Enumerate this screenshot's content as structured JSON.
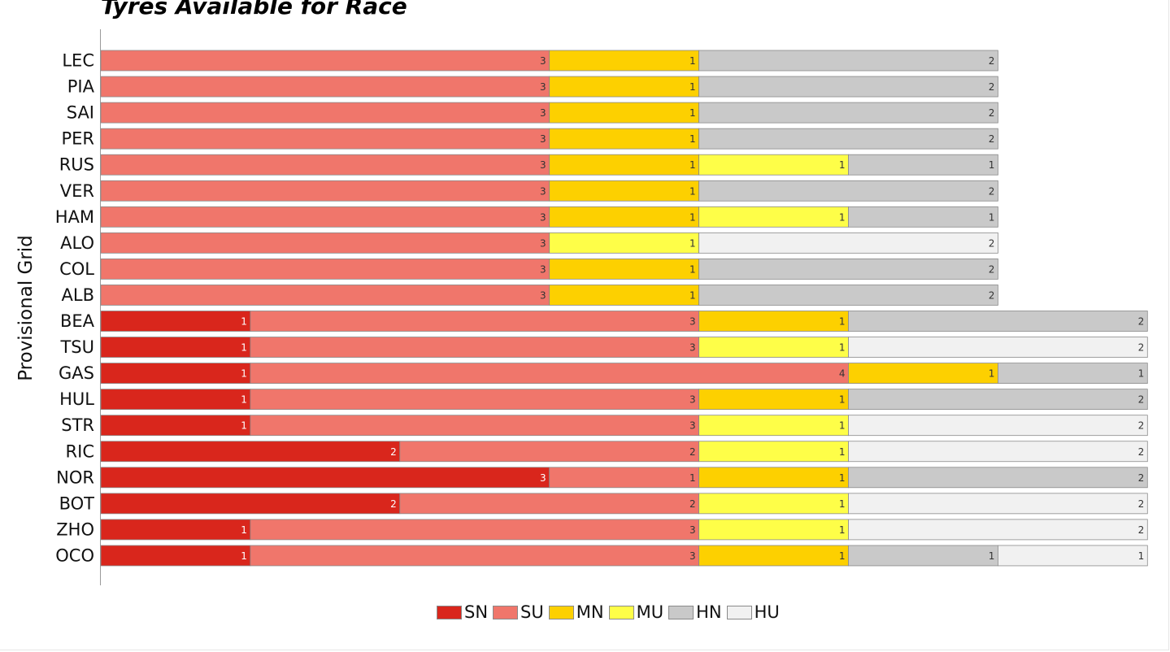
{
  "chart_data": {
    "type": "bar",
    "orientation": "horizontal",
    "stacked": true,
    "title": "Tyres Available for Race",
    "xlabel": "",
    "ylabel": "Provisional Grid",
    "xlim": [
      0,
      7
    ],
    "grid": false,
    "legend_position": "bottom",
    "categories": [
      "LEC",
      "PIA",
      "SAI",
      "PER",
      "RUS",
      "VER",
      "HAM",
      "ALO",
      "COL",
      "ALB",
      "BEA",
      "TSU",
      "GAS",
      "HUL",
      "STR",
      "RIC",
      "NOR",
      "BOT",
      "ZHO",
      "OCO"
    ],
    "series": [
      {
        "name": "SN",
        "color": "#d9261c",
        "label_color": "#ffffff",
        "values": [
          0,
          0,
          0,
          0,
          0,
          0,
          0,
          0,
          0,
          0,
          1,
          1,
          1,
          1,
          1,
          2,
          3,
          2,
          1,
          1
        ]
      },
      {
        "name": "SU",
        "color": "#f0766b",
        "label_color": "#333333",
        "values": [
          3,
          3,
          3,
          3,
          3,
          3,
          3,
          3,
          3,
          3,
          3,
          3,
          4,
          3,
          3,
          2,
          1,
          2,
          3,
          3
        ]
      },
      {
        "name": "MN",
        "color": "#fdd000",
        "label_color": "#333333",
        "values": [
          1,
          1,
          1,
          1,
          1,
          1,
          1,
          0,
          1,
          1,
          1,
          0,
          1,
          1,
          0,
          0,
          1,
          0,
          0,
          1
        ]
      },
      {
        "name": "MU",
        "color": "#fefe48",
        "label_color": "#333333",
        "values": [
          0,
          0,
          0,
          0,
          1,
          0,
          1,
          1,
          0,
          0,
          0,
          1,
          0,
          0,
          1,
          1,
          0,
          1,
          1,
          0
        ]
      },
      {
        "name": "HN",
        "color": "#c9c9c9",
        "label_color": "#333333",
        "values": [
          2,
          2,
          2,
          2,
          1,
          2,
          1,
          0,
          2,
          2,
          2,
          0,
          1,
          2,
          0,
          0,
          2,
          0,
          0,
          1
        ]
      },
      {
        "name": "HU",
        "color": "#f1f1f1",
        "label_color": "#333333",
        "values": [
          0,
          0,
          0,
          0,
          0,
          0,
          0,
          2,
          0,
          0,
          0,
          2,
          0,
          0,
          2,
          2,
          0,
          2,
          2,
          1
        ]
      }
    ]
  }
}
